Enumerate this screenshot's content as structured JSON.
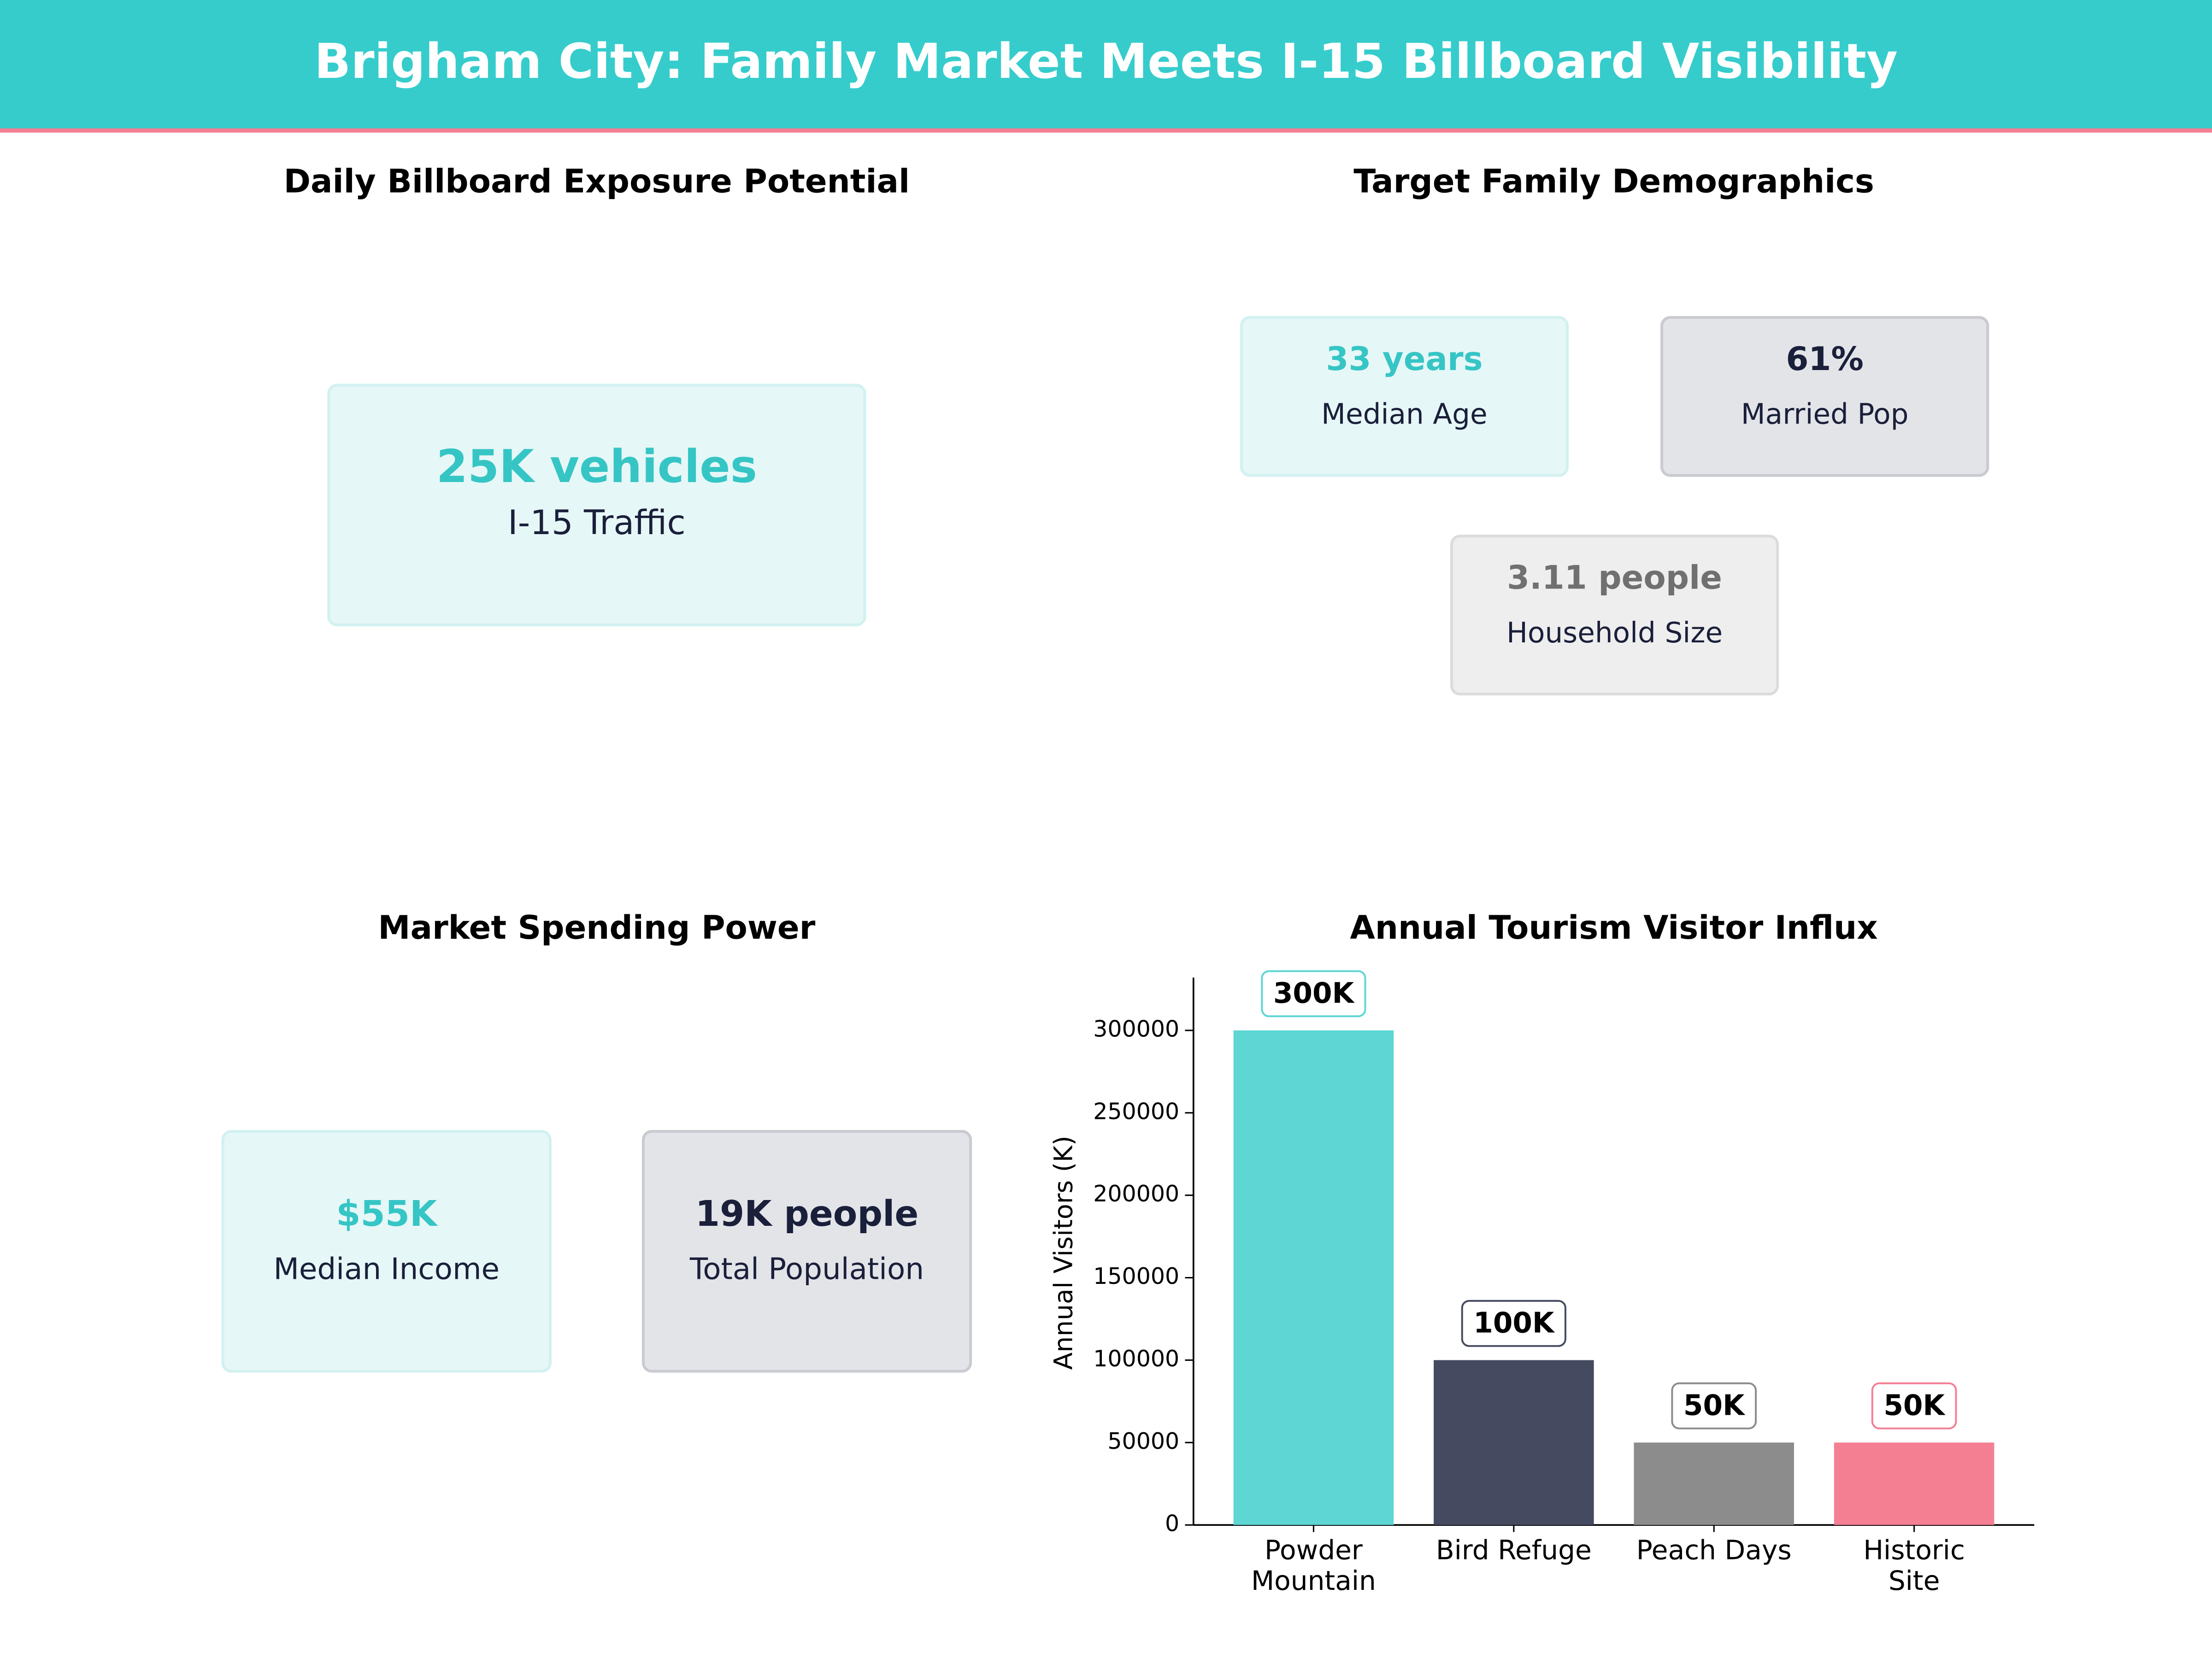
{
  "header": {
    "title": "Brigham City: Family Market Meets I-15 Billboard Visibility"
  },
  "exposure": {
    "title": "Daily Billboard Exposure Potential",
    "cards": [
      {
        "value": "25K vehicles",
        "label": "I-15 Traffic"
      }
    ]
  },
  "demographics": {
    "title": "Target Family Demographics",
    "cards": [
      {
        "value": "33 years",
        "label": "Median Age"
      },
      {
        "value": "61%",
        "label": "Married Pop"
      },
      {
        "value": "3.11 people",
        "label": "Household Size"
      }
    ]
  },
  "spending": {
    "title": "Market Spending Power",
    "cards": [
      {
        "value": "$55K",
        "label": "Median Income"
      },
      {
        "value": "19K people",
        "label": "Total Population"
      }
    ]
  },
  "chart_data": {
    "type": "bar",
    "title": "Annual Tourism Visitor Influx",
    "ylabel": "Annual Visitors (K)",
    "categories": [
      "Powder\nMountain",
      "Bird Refuge",
      "Peach Days",
      "Historic\nSite"
    ],
    "values": [
      300000,
      100000,
      50000,
      50000
    ],
    "value_labels": [
      "300K",
      "100K",
      "50K",
      "50K"
    ],
    "colors": [
      "#5dd6d4",
      "#454a60",
      "#8c8c8c",
      "#f47f93"
    ],
    "ylim": [
      0,
      332000
    ],
    "yticks": [
      0,
      50000,
      100000,
      150000,
      200000,
      250000,
      300000
    ]
  }
}
